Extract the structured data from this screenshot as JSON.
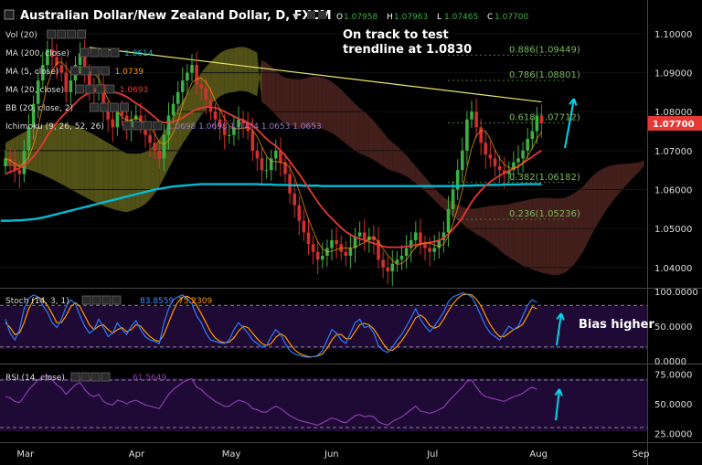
{
  "header": {
    "title": "Australian Dollar/New Zealand Dollar, D, FXCM",
    "ohlc": [
      {
        "k": "O",
        "v": "1.07958"
      },
      {
        "k": "H",
        "v": "1.07963"
      },
      {
        "k": "L",
        "v": "1.07465"
      },
      {
        "k": "C",
        "v": "1.07700"
      }
    ]
  },
  "indicators": [
    {
      "label": "Vol (20)",
      "value": ""
    },
    {
      "label": "MA (200, close)",
      "value": "1.0614"
    },
    {
      "label": "MA (5, close)",
      "value": "1.0739"
    },
    {
      "label": "MA (20, close)",
      "value": "1.0693"
    },
    {
      "label": "BB (20, close, 2)",
      "value": ""
    },
    {
      "label": "Ichimoku (9, 26, 52, 26)",
      "value": "1.0698  1.0698  1.0774  1.0653  1.0653"
    }
  ],
  "annotations": {
    "trendline_note": "On track to test\ntrendline at 1.0830",
    "bias": "Bias higher"
  },
  "colors": {
    "up": "#3cb043",
    "down": "#d32f2f",
    "ma200": "#00bcd4",
    "ma20": "#e53935",
    "ma5": "#ff9800",
    "trendline": "#e8e86a",
    "cloud_bull": "#6b6b1f",
    "cloud_bear": "#5a2a24",
    "stoch_k": "#2f7bff",
    "stoch_d": "#ff9800",
    "rsi": "#8e3cb0",
    "price_badge": "#e53935",
    "arrow": "#00d8f0"
  },
  "chart_data": [
    {
      "type": "line",
      "title": "Australian Dollar/New Zealand Dollar, D, FXCM",
      "ylim": [
        1.0355,
        1.1035
      ],
      "y_ticks": [
        "1.10000",
        "1.09000",
        "1.08000",
        "1.07000",
        "1.06000",
        "1.05000",
        "1.04000"
      ],
      "x_ticks": [
        "Mar",
        "Apr",
        "May",
        "Jun",
        "Jul",
        "Aug",
        "Sep"
      ],
      "last_price": "1.07700",
      "close": [
        1.068,
        1.067,
        1.065,
        1.064,
        1.07,
        1.076,
        1.082,
        1.088,
        1.092,
        1.096,
        1.094,
        1.092,
        1.09,
        1.085,
        1.088,
        1.092,
        1.095,
        1.09,
        1.086,
        1.085,
        1.087,
        1.08,
        1.078,
        1.076,
        1.08,
        1.079,
        1.076,
        1.078,
        1.079,
        1.077,
        1.074,
        1.072,
        1.07,
        1.068,
        1.074,
        1.079,
        1.082,
        1.085,
        1.088,
        1.09,
        1.092,
        1.087,
        1.086,
        1.083,
        1.08,
        1.078,
        1.076,
        1.074,
        1.074,
        1.076,
        1.078,
        1.077,
        1.075,
        1.07,
        1.068,
        1.065,
        1.065,
        1.068,
        1.07,
        1.067,
        1.064,
        1.059,
        1.056,
        1.052,
        1.049,
        1.046,
        1.044,
        1.042,
        1.043,
        1.045,
        1.047,
        1.046,
        1.044,
        1.043,
        1.045,
        1.048,
        1.049,
        1.047,
        1.048,
        1.047,
        1.042,
        1.04,
        1.039,
        1.041,
        1.042,
        1.043,
        1.045,
        1.047,
        1.049,
        1.046,
        1.045,
        1.044,
        1.045,
        1.047,
        1.049,
        1.055,
        1.06,
        1.065,
        1.07,
        1.078,
        1.08,
        1.076,
        1.072,
        1.069,
        1.068,
        1.066,
        1.065,
        1.064,
        1.065,
        1.067,
        1.068,
        1.07,
        1.073,
        1.075,
        1.079,
        1.077
      ],
      "ma20": [
        1.064,
        1.0645,
        1.065,
        1.0655,
        1.0662,
        1.0672,
        1.0685,
        1.07,
        1.0718,
        1.0738,
        1.0756,
        1.0772,
        1.0786,
        1.0798,
        1.081,
        1.0822,
        1.0834,
        1.0842,
        1.0848,
        1.0852,
        1.0856,
        1.0856,
        1.0854,
        1.085,
        1.0848,
        1.0844,
        1.0838,
        1.083,
        1.0822,
        1.0814,
        1.0806,
        1.0796,
        1.0786,
        1.0776,
        1.0772,
        1.0772,
        1.0774,
        1.0778,
        1.0784,
        1.0792,
        1.08,
        1.0806,
        1.081,
        1.0812,
        1.0812,
        1.081,
        1.0806,
        1.08,
        1.0794,
        1.0788,
        1.0782,
        1.0778,
        1.0772,
        1.0764,
        1.0754,
        1.0742,
        1.073,
        1.072,
        1.0712,
        1.07,
        1.0688,
        1.0672,
        1.0656,
        1.064,
        1.0622,
        1.0604,
        1.0586,
        1.0568,
        1.0552,
        1.0538,
        1.0526,
        1.0514,
        1.0502,
        1.0492,
        1.0484,
        1.0478,
        1.0474,
        1.047,
        1.0466,
        1.0462,
        1.0458,
        1.0454,
        1.0452,
        1.0452,
        1.0452,
        1.0452,
        1.0454,
        1.0456,
        1.0458,
        1.046,
        1.0462,
        1.0464,
        1.0466,
        1.047,
        1.0476,
        1.0486,
        1.0498,
        1.0512,
        1.0528,
        1.0548,
        1.0568,
        1.0584,
        1.0598,
        1.061,
        1.062,
        1.0628,
        1.0636,
        1.0642,
        1.0648,
        1.0654,
        1.066,
        1.0668,
        1.0676,
        1.0684,
        1.0693,
        1.07
      ],
      "ma200": [
        1.052,
        1.052,
        1.0521,
        1.0521,
        1.0522,
        1.0523,
        1.0524,
        1.0526,
        1.0528,
        1.0531,
        1.0534,
        1.0537,
        1.054,
        1.0543,
        1.0546,
        1.0549,
        1.0552,
        1.0555,
        1.0558,
        1.0561,
        1.0564,
        1.0567,
        1.057,
        1.0573,
        1.0576,
        1.0579,
        1.0582,
        1.0585,
        1.0588,
        1.0591,
        1.0594,
        1.0597,
        1.06,
        1.0602,
        1.0604,
        1.0606,
        1.0608,
        1.0609,
        1.061,
        1.0611,
        1.0612,
        1.0613,
        1.0614,
        1.0614,
        1.0614,
        1.0614,
        1.0614,
        1.0614,
        1.0614,
        1.0614,
        1.0614,
        1.0614,
        1.0614,
        1.0614,
        1.0614,
        1.0613,
        1.0613,
        1.0613,
        1.0612,
        1.0612,
        1.0612,
        1.0611,
        1.0611,
        1.0611,
        1.061,
        1.061,
        1.061,
        1.061,
        1.0609,
        1.0609,
        1.0609,
        1.0609,
        1.0609,
        1.0609,
        1.0609,
        1.0609,
        1.0609,
        1.0609,
        1.0609,
        1.0609,
        1.0609,
        1.0609,
        1.0609,
        1.0609,
        1.0609,
        1.0609,
        1.0609,
        1.0609,
        1.0609,
        1.0609,
        1.0609,
        1.0609,
        1.0609,
        1.0609,
        1.0609,
        1.0609,
        1.0609,
        1.0609,
        1.061,
        1.061,
        1.061,
        1.0611,
        1.0611,
        1.0611,
        1.0612,
        1.0612,
        1.0612,
        1.0613,
        1.0613,
        1.0613,
        1.0613,
        1.0614,
        1.0614,
        1.0614,
        1.0614,
        1.0614
      ],
      "trendline": {
        "from": {
          "x": 18,
          "y": 1.0965
        },
        "to": {
          "x": 115,
          "y": 1.0825
        }
      },
      "fib_levels": [
        {
          "label": "0.886(1.09449)",
          "y": 1.09449
        },
        {
          "label": "0.786(1.08801)",
          "y": 1.08801
        },
        {
          "label": "0.618(1.07712)",
          "y": 1.07712
        },
        {
          "label": "0.382(1.06182)",
          "y": 1.06182
        },
        {
          "label": "0.236(1.05236)",
          "y": 1.05236
        }
      ]
    },
    {
      "type": "line",
      "title": "Stoch (14, 3, 1)",
      "ylim": [
        0,
        100
      ],
      "y_ticks": [
        "100.0000",
        "50.0000",
        "0.0000"
      ],
      "k_value": "83.8559",
      "d_value": "75.2309",
      "bands": [
        80,
        20
      ],
      "k": [
        60,
        40,
        30,
        45,
        75,
        90,
        95,
        92,
        80,
        70,
        55,
        48,
        60,
        78,
        88,
        82,
        65,
        50,
        40,
        45,
        60,
        48,
        35,
        40,
        55,
        45,
        38,
        50,
        58,
        45,
        35,
        30,
        28,
        25,
        55,
        75,
        88,
        92,
        95,
        90,
        82,
        65,
        55,
        40,
        30,
        28,
        26,
        25,
        30,
        45,
        55,
        48,
        40,
        30,
        25,
        20,
        22,
        35,
        45,
        38,
        25,
        15,
        10,
        8,
        6,
        5,
        6,
        8,
        15,
        30,
        45,
        40,
        30,
        25,
        40,
        55,
        60,
        48,
        50,
        40,
        22,
        15,
        12,
        20,
        30,
        38,
        50,
        62,
        75,
        60,
        50,
        42,
        50,
        60,
        70,
        85,
        92,
        95,
        98,
        96,
        92,
        80,
        65,
        50,
        40,
        35,
        30,
        40,
        50,
        45,
        50,
        65,
        80,
        88,
        84
      ],
      "d": [
        55,
        48,
        38,
        40,
        55,
        75,
        88,
        92,
        88,
        80,
        68,
        55,
        55,
        65,
        78,
        84,
        78,
        65,
        52,
        45,
        50,
        52,
        45,
        40,
        45,
        48,
        42,
        45,
        52,
        50,
        42,
        35,
        30,
        28,
        38,
        55,
        72,
        85,
        92,
        93,
        89,
        80,
        68,
        55,
        42,
        33,
        28,
        26,
        27,
        33,
        43,
        50,
        48,
        40,
        32,
        25,
        22,
        25,
        34,
        39,
        35,
        25,
        16,
        11,
        8,
        6,
        6,
        7,
        10,
        18,
        30,
        38,
        38,
        32,
        32,
        42,
        52,
        54,
        52,
        46,
        36,
        25,
        16,
        15,
        21,
        29,
        39,
        50,
        62,
        66,
        61,
        51,
        47,
        50,
        60,
        72,
        82,
        90,
        95,
        96,
        95,
        89,
        79,
        65,
        52,
        42,
        35,
        35,
        40,
        45,
        48,
        53,
        65,
        78,
        75
      ]
    },
    {
      "type": "line",
      "title": "RSI (14, close)",
      "ylim": [
        20,
        80
      ],
      "y_ticks": [
        "75.0000",
        "50.0000",
        "25.0000"
      ],
      "value": "61.5649",
      "bands": [
        70,
        30
      ],
      "values": [
        56,
        55,
        52,
        51,
        56,
        62,
        66,
        70,
        72,
        74,
        70,
        66,
        63,
        58,
        62,
        66,
        68,
        62,
        58,
        56,
        58,
        52,
        50,
        49,
        53,
        52,
        50,
        52,
        53,
        51,
        49,
        48,
        47,
        46,
        52,
        58,
        62,
        65,
        68,
        70,
        71,
        64,
        62,
        58,
        55,
        52,
        50,
        48,
        48,
        51,
        53,
        52,
        50,
        46,
        45,
        43,
        43,
        46,
        48,
        46,
        43,
        40,
        38,
        36,
        35,
        34,
        33,
        32,
        34,
        36,
        38,
        37,
        35,
        34,
        37,
        40,
        41,
        39,
        40,
        39,
        35,
        33,
        32,
        35,
        37,
        39,
        42,
        45,
        48,
        44,
        43,
        42,
        43,
        45,
        47,
        52,
        56,
        60,
        64,
        69,
        70,
        64,
        59,
        56,
        55,
        54,
        53,
        52,
        54,
        56,
        57,
        59,
        62,
        64,
        62
      ]
    }
  ]
}
